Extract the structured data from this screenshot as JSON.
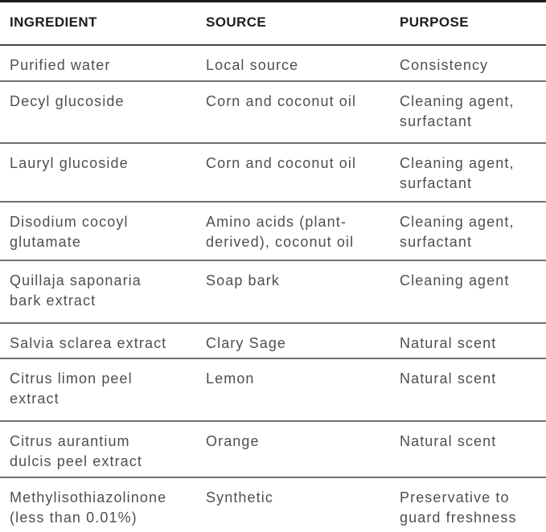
{
  "table": {
    "columns": [
      "INGREDIENT",
      "SOURCE",
      "PURPOSE"
    ],
    "rows": [
      {
        "ingredient": "Purified water",
        "source": "Local source",
        "purpose": "Consistency"
      },
      {
        "ingredient": "Decyl glucoside",
        "source": "Corn and coconut oil",
        "purpose": "Cleaning agent,\nsurfactant"
      },
      {
        "ingredient": "Lauryl glucoside",
        "source": "Corn and coconut oil",
        "purpose": "Cleaning agent,\nsurfactant"
      },
      {
        "ingredient": "Disodium cocoyl\nglutamate",
        "source": "Amino acids (plant-\nderived), coconut oil",
        "purpose": "Cleaning agent,\nsurfactant"
      },
      {
        "ingredient": "Quillaja saponaria\nbark extract",
        "source": "Soap bark",
        "purpose": "Cleaning agent"
      },
      {
        "ingredient": "Salvia sclarea extract",
        "source": "Clary Sage",
        "purpose": "Natural scent"
      },
      {
        "ingredient": "Citrus limon peel\nextract",
        "source": "Lemon",
        "purpose": "Natural scent"
      },
      {
        "ingredient": "Citrus aurantium\ndulcis peel extract",
        "source": "Orange",
        "purpose": "Natural scent"
      },
      {
        "ingredient": "Methylisothiazolinone\n(less than 0.01%)",
        "source": "Synthetic",
        "purpose": "Preservative to\nguard freshness"
      }
    ],
    "colors": {
      "background": "#ffffff",
      "header_text": "#1d1d1b",
      "body_text": "#4f4f4f",
      "top_border": "#1b1b1b",
      "header_divider": "#454545",
      "row_divider": "#6f6f6f"
    }
  }
}
